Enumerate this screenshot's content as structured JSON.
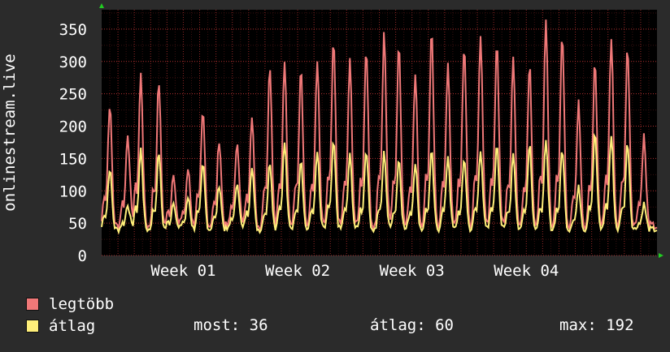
{
  "chart_data": {
    "type": "line",
    "ylabel": "onlinestream.live",
    "ylim": [
      0,
      380
    ],
    "yticks": [
      0,
      50,
      100,
      150,
      200,
      250,
      300,
      350
    ],
    "xlim": [
      0,
      34
    ],
    "xticks": [
      {
        "label": "Week 01",
        "at": 5
      },
      {
        "label": "Week 02",
        "at": 12
      },
      {
        "label": "Week 03",
        "at": 19
      },
      {
        "label": "Week 04",
        "at": 26
      }
    ],
    "grid": true,
    "colors": {
      "background": "#2b2b2b",
      "plot": "#000000",
      "grid": "#b03030",
      "max_series": "#f07878",
      "avg_series": "#ffef7a"
    },
    "series": [
      {
        "name": "legtöbb",
        "color": "#f07878",
        "peaks": [
          {
            "x": 0.5,
            "v": 235
          },
          {
            "x": 1.6,
            "v": 190
          },
          {
            "x": 2.4,
            "v": 280
          },
          {
            "x": 3.5,
            "v": 270
          },
          {
            "x": 4.4,
            "v": 130
          },
          {
            "x": 5.3,
            "v": 135
          },
          {
            "x": 6.2,
            "v": 220
          },
          {
            "x": 7.2,
            "v": 180
          },
          {
            "x": 8.3,
            "v": 180
          },
          {
            "x": 9.2,
            "v": 220
          },
          {
            "x": 10.3,
            "v": 295
          },
          {
            "x": 11.2,
            "v": 300
          },
          {
            "x": 12.2,
            "v": 295
          },
          {
            "x": 13.2,
            "v": 300
          },
          {
            "x": 14.2,
            "v": 330
          },
          {
            "x": 15.2,
            "v": 300
          },
          {
            "x": 16.2,
            "v": 325
          },
          {
            "x": 17.3,
            "v": 345
          },
          {
            "x": 18.2,
            "v": 330
          },
          {
            "x": 19.2,
            "v": 285
          },
          {
            "x": 20.2,
            "v": 345
          },
          {
            "x": 21.2,
            "v": 300
          },
          {
            "x": 22.2,
            "v": 325
          },
          {
            "x": 23.2,
            "v": 345
          },
          {
            "x": 24.2,
            "v": 335
          },
          {
            "x": 25.2,
            "v": 310
          },
          {
            "x": 26.2,
            "v": 300
          },
          {
            "x": 27.2,
            "v": 360
          },
          {
            "x": 28.2,
            "v": 345
          },
          {
            "x": 29.2,
            "v": 235
          },
          {
            "x": 30.2,
            "v": 300
          },
          {
            "x": 31.2,
            "v": 335
          },
          {
            "x": 32.2,
            "v": 325
          },
          {
            "x": 33.2,
            "v": 185
          }
        ]
      },
      {
        "name": "átlag",
        "color": "#ffef7a",
        "peaks": [
          {
            "x": 0.5,
            "v": 135
          },
          {
            "x": 1.6,
            "v": 80
          },
          {
            "x": 2.4,
            "v": 165
          },
          {
            "x": 3.5,
            "v": 160
          },
          {
            "x": 4.4,
            "v": 85
          },
          {
            "x": 5.3,
            "v": 90
          },
          {
            "x": 6.2,
            "v": 140
          },
          {
            "x": 7.2,
            "v": 110
          },
          {
            "x": 8.3,
            "v": 115
          },
          {
            "x": 9.2,
            "v": 140
          },
          {
            "x": 10.3,
            "v": 145
          },
          {
            "x": 11.2,
            "v": 175
          },
          {
            "x": 12.2,
            "v": 150
          },
          {
            "x": 13.2,
            "v": 160
          },
          {
            "x": 14.2,
            "v": 175
          },
          {
            "x": 15.2,
            "v": 155
          },
          {
            "x": 16.2,
            "v": 165
          },
          {
            "x": 17.3,
            "v": 160
          },
          {
            "x": 18.2,
            "v": 150
          },
          {
            "x": 19.2,
            "v": 145
          },
          {
            "x": 20.2,
            "v": 160
          },
          {
            "x": 21.2,
            "v": 155
          },
          {
            "x": 22.2,
            "v": 150
          },
          {
            "x": 23.2,
            "v": 165
          },
          {
            "x": 24.2,
            "v": 175
          },
          {
            "x": 25.2,
            "v": 160
          },
          {
            "x": 26.2,
            "v": 175
          },
          {
            "x": 27.2,
            "v": 175
          },
          {
            "x": 28.2,
            "v": 165
          },
          {
            "x": 29.2,
            "v": 105
          },
          {
            "x": 30.2,
            "v": 190
          },
          {
            "x": 31.2,
            "v": 185
          },
          {
            "x": 32.2,
            "v": 175
          },
          {
            "x": 33.2,
            "v": 80
          }
        ]
      }
    ],
    "baseline": {
      "legtöbb": 45,
      "átlag": 40
    }
  },
  "legend": [
    {
      "label": "legtöbb",
      "color": "#f07878"
    },
    {
      "label": "átlag",
      "color": "#ffef7a"
    }
  ],
  "stats": {
    "current": "most: 36",
    "average": "átlag: 60",
    "maximum": "max: 192"
  }
}
